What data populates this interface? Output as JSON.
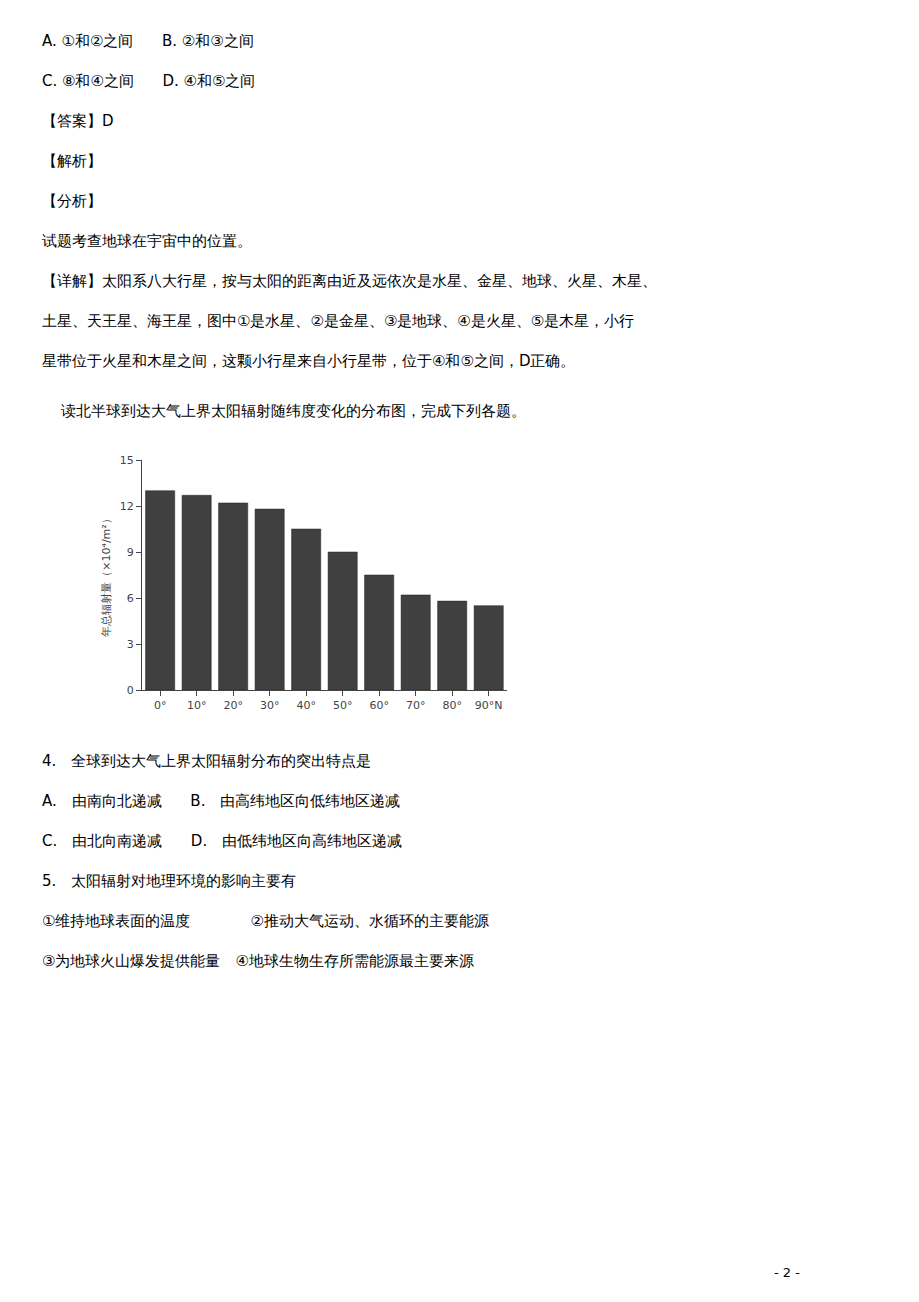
{
  "chart_data": {
    "type": "bar",
    "title": "    读北半球到达大气上界太阳辐射随纬度变化的分布图，完成下列各题。",
    "categories": [
      "0°",
      "10°",
      "20°",
      "30°",
      "40°",
      "50°",
      "60°",
      "70°",
      "80°",
      "90°N"
    ],
    "values": [
      13.0,
      12.7,
      12.2,
      11.8,
      10.5,
      9.0,
      7.5,
      6.2,
      5.8,
      5.5
    ],
    "color": "#404040",
    "ylabel": "年总辐射量（×10⁴/m²）",
    "ylim": [
      0,
      15
    ],
    "yticks": [
      0,
      3,
      6,
      9,
      12,
      15
    ],
    "grid": false,
    "annotations": [
      "A. ①和②之间      B. ②和③之间",
      "C. ⑧和④之间      D. ④和⑤之间",
      "【答案】D",
      "【解析】",
      "【分析】",
      "试题考查地球在宇宙中的位置。",
      "【详解】太阳系八大行星，按与太阳的距离由近及远依次是水星、金星、地球、火星、木星、",
      "土星、天王星、海王星，图中①是水星、②是金星、③是地球、④是火星、⑤是木星，小行",
      "星带位于火星和木星之间，这颗小行星来自小行星带，位于④和⑤之间，D正确。",
      "4.　全球到达大气上界太阳辐射分布的突出特点是",
      "A.　由南向北递减      B.　由高纬地区向低纬地区递减",
      "C.　由北向南递减      D.　由低纬地区向高纬地区递减",
      "5.　太阳辐射对地理环境的影响主要有",
      "①维持地球表面的温度　　　　②推动大气运动、水循环的主要能源",
      "③为地球火山爆发提供能量　④地球生物生存所需能源最主要来源",
      "- 2 -"
    ]
  }
}
